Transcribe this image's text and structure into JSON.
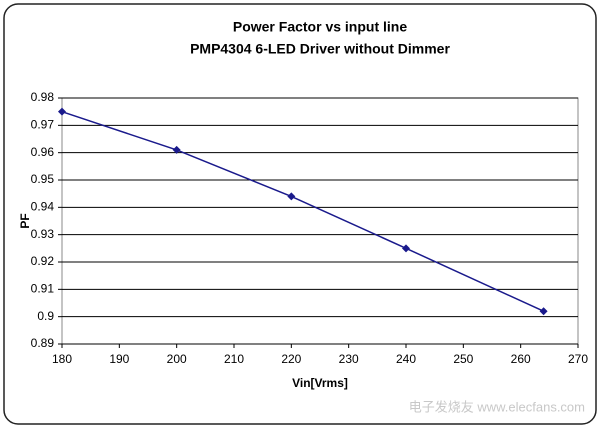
{
  "chart_data": {
    "type": "line",
    "title": "Power Factor vs input line",
    "subtitle": "PMP4304 6-LED Driver without Dimmer",
    "x_label": "Vin[Vrms]",
    "y_label": "PF",
    "x": [
      180,
      200,
      220,
      240,
      264
    ],
    "values": [
      0.975,
      0.961,
      0.944,
      0.925,
      0.902
    ],
    "color": "#1a1a8c",
    "xlim": [
      180,
      270
    ],
    "xticks": [
      180,
      190,
      200,
      210,
      220,
      230,
      240,
      250,
      260,
      270
    ],
    "ylim": [
      0.89,
      0.98
    ],
    "yticks": [
      0.89,
      0.9,
      0.91,
      0.92,
      0.93,
      0.94,
      0.95,
      0.96,
      0.97,
      0.98
    ],
    "grid": true,
    "watermark": "电子发烧友 www.elecfans.com"
  }
}
